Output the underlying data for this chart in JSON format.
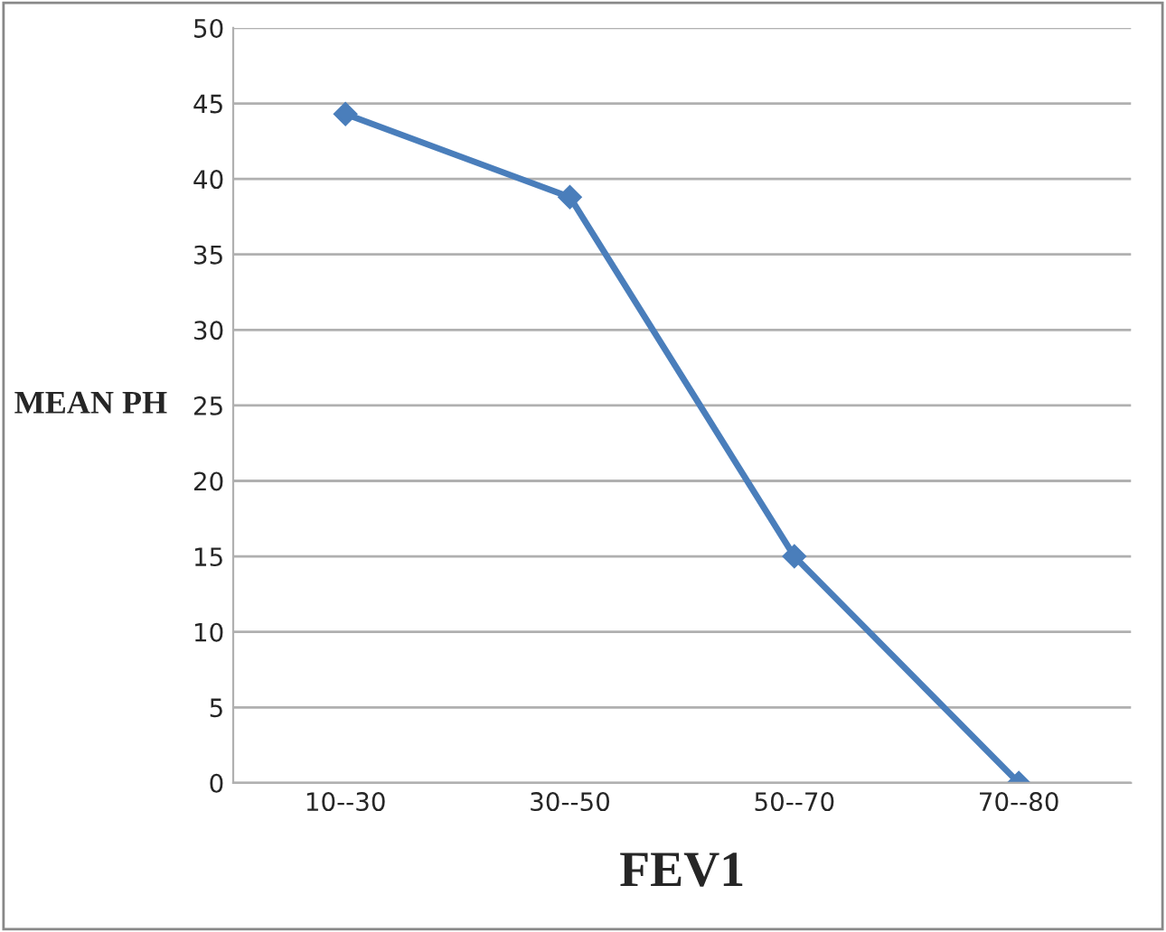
{
  "chart_data": {
    "type": "line",
    "xlabel": "FEV1",
    "ylabel": "MEAN PH",
    "categories": [
      "10--30",
      "30--50",
      "50--70",
      "70--80"
    ],
    "series": [
      {
        "color": "#4a7ebb",
        "values": [
          44.3,
          38.8,
          15,
          0
        ]
      }
    ],
    "ylim": [
      0,
      50
    ],
    "yticks": [
      0,
      5,
      10,
      15,
      20,
      25,
      30,
      35,
      40,
      45,
      50
    ],
    "grid": "y",
    "marker": "diamond",
    "line_style": "solid"
  }
}
